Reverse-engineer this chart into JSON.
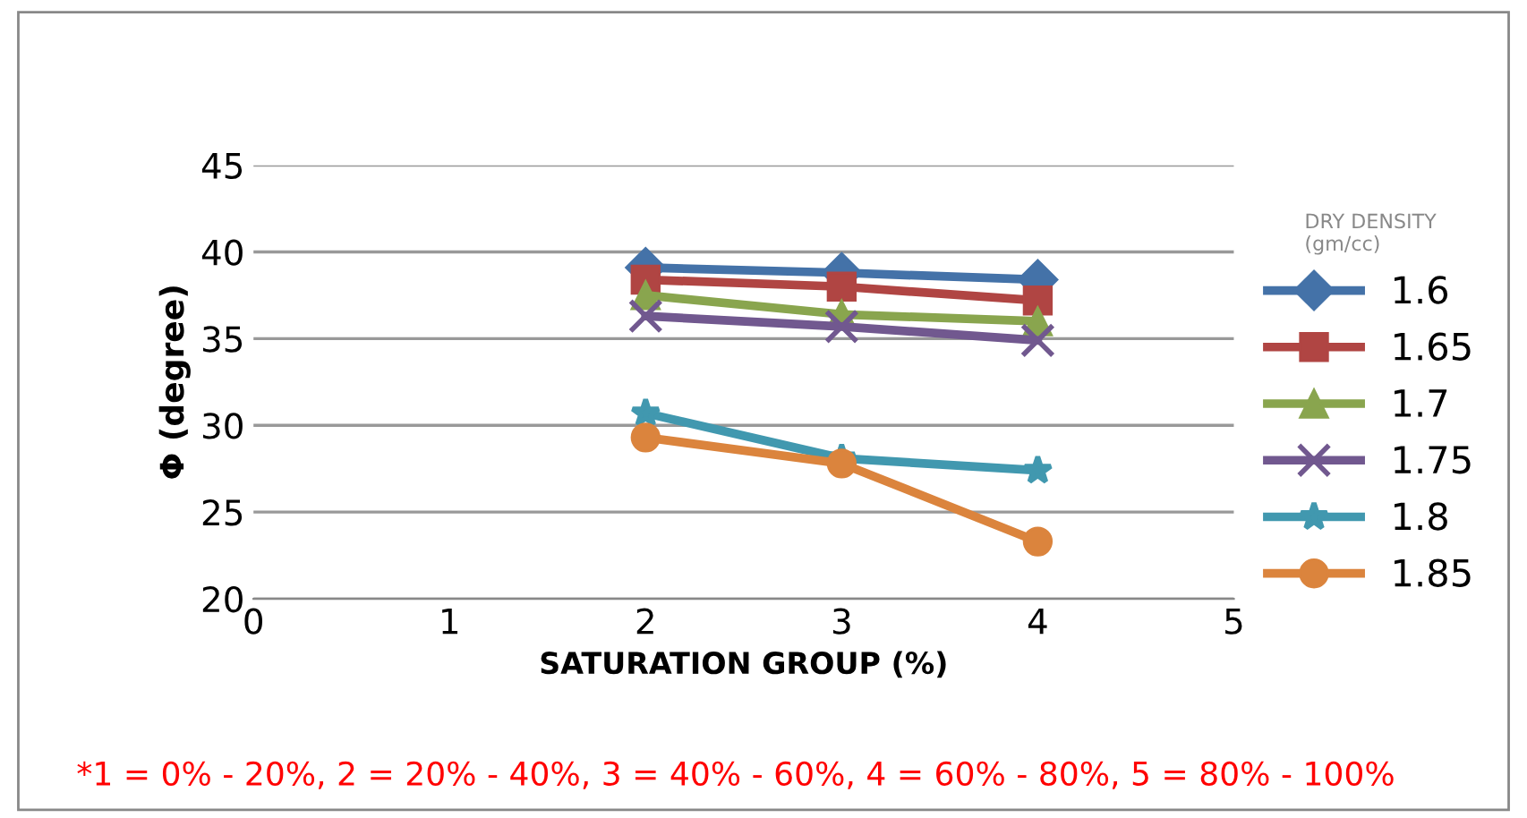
{
  "chart_data": {
    "type": "line",
    "xlabel": "SATURATION GROUP (%)",
    "ylabel": "Φ (degree)",
    "legend_title": "DRY DENSITY\n(gm/cc)",
    "x": [
      2,
      3,
      4
    ],
    "xlim": [
      0,
      5
    ],
    "xticks": [
      0,
      1,
      2,
      3,
      4,
      5
    ],
    "ylim": [
      20,
      45
    ],
    "yticks": [
      20,
      25,
      30,
      35,
      40,
      45
    ],
    "grid": "y",
    "legend": "right",
    "series": [
      {
        "name": "1.6",
        "color": "#4472a8",
        "marker": "diamond",
        "values": [
          39.1,
          38.8,
          38.4
        ]
      },
      {
        "name": "1.65",
        "color": "#b04543",
        "marker": "square",
        "values": [
          38.4,
          38.0,
          37.2
        ]
      },
      {
        "name": "1.7",
        "color": "#89a54e",
        "marker": "triangle",
        "values": [
          37.5,
          36.4,
          36.0
        ]
      },
      {
        "name": "1.75",
        "color": "#71588f",
        "marker": "cross",
        "values": [
          36.3,
          35.7,
          34.9
        ]
      },
      {
        "name": "1.8",
        "color": "#4198af",
        "marker": "star",
        "values": [
          30.7,
          28.1,
          27.4
        ]
      },
      {
        "name": "1.85",
        "color": "#db843d",
        "marker": "circle",
        "values": [
          29.3,
          27.8,
          23.3
        ]
      }
    ],
    "annotations": [
      "*1 = 0% - 20%, 2 = 20% - 40%, 3 = 40% - 60%, 4 = 60% - 80%, 5 = 80% - 100%"
    ]
  }
}
